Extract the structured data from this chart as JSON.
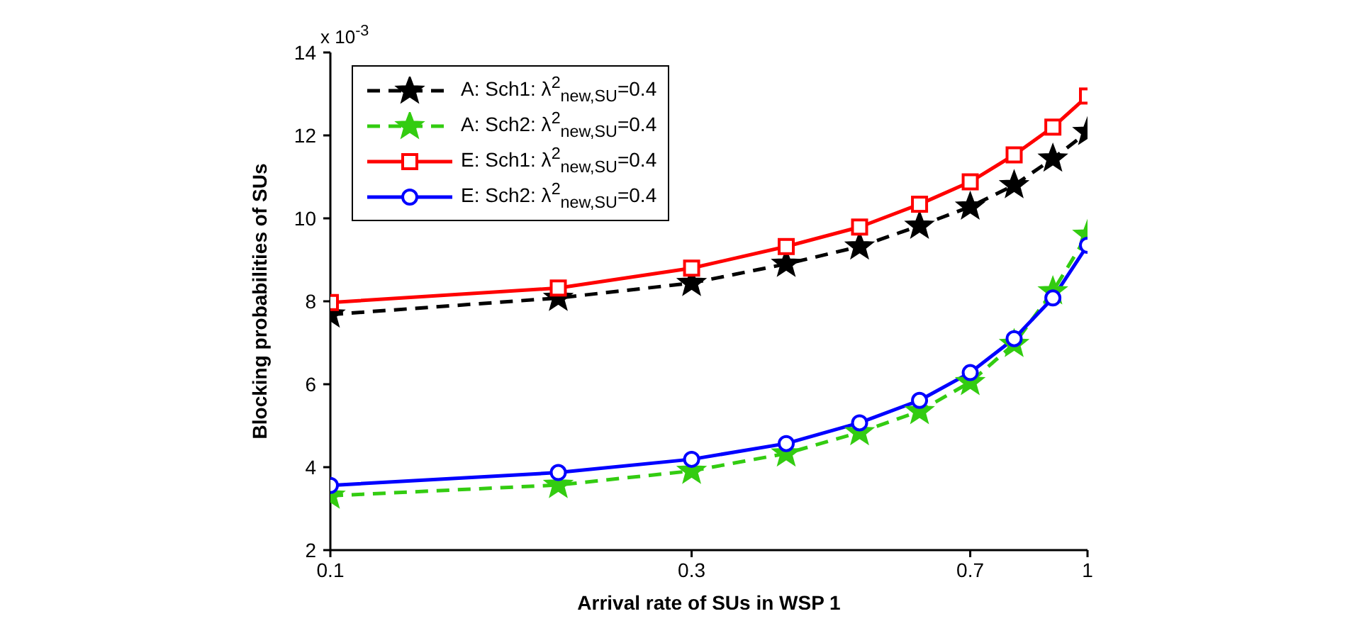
{
  "chart_data": {
    "type": "line",
    "xlabel": "Arrival rate of SUs in WSP 1",
    "ylabel": "Blocking probabilities of  SUs",
    "annotations": [
      "x 10$^{-3}$"
    ],
    "x": [
      0.1,
      0.2,
      0.3,
      0.4,
      0.5,
      0.6,
      0.7,
      0.8,
      0.9,
      1
    ],
    "log": "x",
    "xlim": [
      0.1,
      1
    ],
    "xticks": [
      0.1,
      0.3,
      0.7,
      1
    ],
    "ylim": [
      2,
      14
    ],
    "yticks": [
      2,
      4,
      6,
      8,
      10,
      12,
      14
    ],
    "grid": false,
    "legend": "top left",
    "series": [
      {
        "name": "A: Sch1: λ$^{2}$$_{new,SU}$=0.4",
        "color": "#000000",
        "marker": "star",
        "line_style": "dashed",
        "values": [
          7.68,
          8.08,
          8.44,
          8.9,
          9.32,
          9.82,
          10.28,
          10.8,
          11.44,
          12.08
        ]
      },
      {
        "name": "A: Sch2: λ$^{2}$$_{new,SU}$=0.4",
        "color": "#33cc11",
        "marker": "star",
        "line_style": "dashed",
        "values": [
          3.31,
          3.57,
          3.91,
          4.33,
          4.84,
          5.35,
          6.05,
          6.97,
          8.24,
          9.6
        ]
      },
      {
        "name": "E: Sch1: λ$^{2}$$_{new,SU}$=0.4",
        "color": "#ff0000",
        "marker": "square",
        "line_style": "solid",
        "values": [
          7.97,
          8.32,
          8.8,
          9.32,
          9.79,
          10.34,
          10.88,
          11.53,
          12.2,
          12.95
        ]
      },
      {
        "name": "E: Sch2: λ$^{2}$$_{new,SU}$=0.4",
        "color": "#0000ff",
        "marker": "circle",
        "line_style": "solid",
        "values": [
          3.56,
          3.87,
          4.19,
          4.57,
          5.07,
          5.61,
          6.28,
          7.1,
          8.08,
          9.35
        ]
      }
    ]
  }
}
